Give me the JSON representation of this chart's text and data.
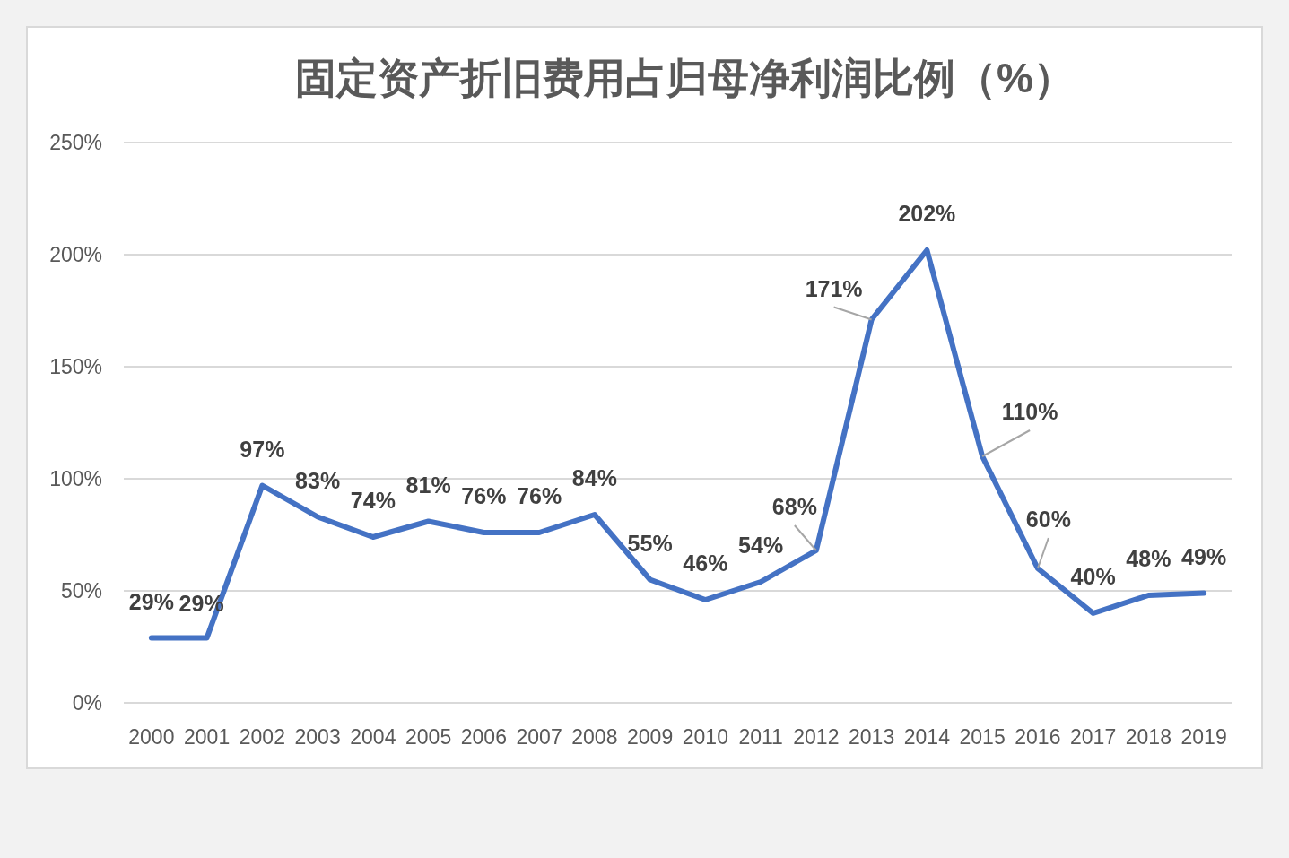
{
  "chart_data": {
    "type": "line",
    "title": "固定资产折旧费用占归母净利润比例（%）",
    "categories": [
      "2000",
      "2001",
      "2002",
      "2003",
      "2004",
      "2005",
      "2006",
      "2007",
      "2008",
      "2009",
      "2010",
      "2011",
      "2012",
      "2013",
      "2014",
      "2015",
      "2016",
      "2017",
      "2018",
      "2019"
    ],
    "series": [
      {
        "color": "#4472c4",
        "values": [
          29,
          29,
          97,
          83,
          74,
          81,
          76,
          76,
          84,
          55,
          46,
          54,
          68,
          171,
          202,
          110,
          60,
          40,
          48,
          49
        ],
        "value_labels": [
          "29%",
          "29%",
          "97%",
          "83%",
          "74%",
          "81%",
          "76%",
          "76%",
          "84%",
          "55%",
          "46%",
          "54%",
          "68%",
          "171%",
          "202%",
          "110%",
          "60%",
          "40%",
          "48%",
          "49%"
        ]
      }
    ],
    "ylim": [
      0,
      250
    ],
    "yticks": [
      {
        "value": 0,
        "label": "0%"
      },
      {
        "value": 50,
        "label": "50%"
      },
      {
        "value": 100,
        "label": "100%"
      },
      {
        "value": 150,
        "label": "150%"
      },
      {
        "value": 200,
        "label": "200%"
      },
      {
        "value": 250,
        "label": "250%"
      }
    ],
    "grid": "y",
    "line_style": "solid"
  }
}
